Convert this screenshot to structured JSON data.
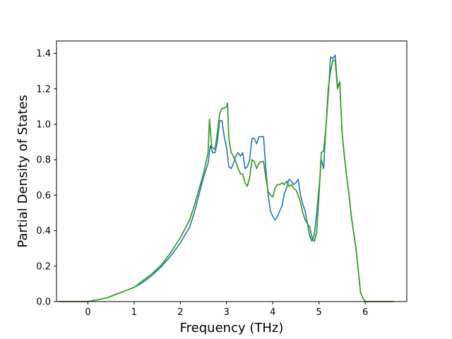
{
  "chart_data": {
    "type": "line",
    "title": "",
    "xlabel": "Frequency (THz)",
    "ylabel": "Partial Density of States",
    "xlim": [
      -0.68,
      6.9
    ],
    "ylim": [
      0.0,
      1.47
    ],
    "xticks": [
      0,
      1,
      2,
      3,
      4,
      5,
      6
    ],
    "yticks": [
      0.0,
      0.2,
      0.4,
      0.6,
      0.8,
      1.0,
      1.2,
      1.4
    ],
    "xtick_labels": [
      "0",
      "1",
      "2",
      "3",
      "4",
      "5",
      "6"
    ],
    "ytick_labels": [
      "0.0",
      "0.2",
      "0.4",
      "0.6",
      "0.8",
      "1.0",
      "1.2",
      "1.4"
    ],
    "grid": false,
    "legend": null,
    "series": [
      {
        "color": "#1f77b4",
        "x": [
          -0.62,
          0.0,
          0.2,
          0.4,
          0.6,
          0.8,
          1.0,
          1.2,
          1.4,
          1.6,
          1.8,
          2.0,
          2.2,
          2.3,
          2.4,
          2.5,
          2.6,
          2.65,
          2.7,
          2.75,
          2.8,
          2.85,
          2.9,
          2.95,
          3.0,
          3.05,
          3.1,
          3.15,
          3.2,
          3.25,
          3.3,
          3.35,
          3.4,
          3.45,
          3.5,
          3.55,
          3.6,
          3.65,
          3.7,
          3.75,
          3.8,
          3.85,
          3.9,
          3.95,
          4.0,
          4.05,
          4.1,
          4.15,
          4.2,
          4.25,
          4.3,
          4.35,
          4.4,
          4.45,
          4.5,
          4.55,
          4.6,
          4.65,
          4.7,
          4.75,
          4.8,
          4.85,
          4.9,
          4.95,
          5.0,
          5.05,
          5.1,
          5.15,
          5.2,
          5.25,
          5.3,
          5.35,
          5.4,
          5.45,
          5.5,
          5.55,
          5.6,
          5.65,
          5.7,
          5.8,
          5.9,
          5.95,
          6.0,
          6.1,
          6.2,
          6.3,
          6.6
        ],
        "y": [
          0.0,
          0.0,
          0.01,
          0.02,
          0.04,
          0.06,
          0.08,
          0.11,
          0.15,
          0.2,
          0.26,
          0.33,
          0.42,
          0.5,
          0.6,
          0.7,
          0.78,
          0.88,
          0.84,
          0.84,
          0.9,
          1.02,
          1.02,
          0.93,
          0.87,
          0.76,
          0.75,
          0.78,
          0.82,
          0.84,
          0.82,
          0.84,
          0.75,
          0.76,
          0.8,
          0.92,
          0.92,
          0.89,
          0.93,
          0.93,
          0.93,
          0.75,
          0.6,
          0.51,
          0.48,
          0.46,
          0.48,
          0.51,
          0.54,
          0.61,
          0.64,
          0.69,
          0.68,
          0.66,
          0.67,
          0.69,
          0.6,
          0.55,
          0.51,
          0.44,
          0.37,
          0.34,
          0.38,
          0.5,
          0.64,
          0.8,
          0.75,
          0.98,
          1.16,
          1.38,
          1.37,
          1.39,
          1.22,
          1.23,
          0.95,
          0.82,
          0.7,
          0.6,
          0.48,
          0.3,
          0.05,
          0.02,
          0.0,
          0.0,
          0.0,
          0.0,
          0.0
        ]
      },
      {
        "color": "#ff7f0e",
        "x": [
          -0.62,
          0.0,
          0.2,
          0.4,
          0.6,
          0.8,
          1.0,
          1.2,
          1.4,
          1.6,
          1.8,
          2.0,
          2.2,
          2.3,
          2.4,
          2.5,
          2.6,
          2.63,
          2.68,
          2.75,
          2.8,
          2.85,
          2.9,
          2.95,
          3.0,
          3.02,
          3.05,
          3.1,
          3.15,
          3.2,
          3.25,
          3.3,
          3.35,
          3.4,
          3.45,
          3.5,
          3.55,
          3.6,
          3.65,
          3.7,
          3.75,
          3.8,
          3.85,
          3.9,
          3.95,
          4.0,
          4.05,
          4.1,
          4.15,
          4.2,
          4.25,
          4.3,
          4.35,
          4.4,
          4.45,
          4.5,
          4.55,
          4.6,
          4.65,
          4.7,
          4.75,
          4.8,
          4.85,
          4.9,
          4.95,
          5.0,
          5.05,
          5.1,
          5.15,
          5.2,
          5.25,
          5.3,
          5.35,
          5.4,
          5.45,
          5.5,
          5.55,
          5.6,
          5.65,
          5.7,
          5.8,
          5.9,
          5.95,
          6.0,
          6.1,
          6.2,
          6.3,
          6.6
        ],
        "y": [
          0.0,
          0.0,
          0.01,
          0.02,
          0.04,
          0.06,
          0.08,
          0.12,
          0.16,
          0.21,
          0.28,
          0.36,
          0.46,
          0.54,
          0.63,
          0.72,
          0.84,
          1.03,
          0.87,
          0.86,
          0.95,
          1.06,
          1.09,
          1.09,
          1.1,
          1.12,
          0.92,
          0.84,
          0.82,
          0.79,
          0.75,
          0.72,
          0.72,
          0.67,
          0.65,
          0.7,
          0.8,
          0.79,
          0.75,
          0.78,
          0.79,
          0.79,
          0.7,
          0.62,
          0.6,
          0.59,
          0.64,
          0.66,
          0.66,
          0.67,
          0.66,
          0.68,
          0.65,
          0.66,
          0.64,
          0.63,
          0.6,
          0.56,
          0.5,
          0.46,
          0.44,
          0.42,
          0.36,
          0.34,
          0.39,
          0.6,
          0.84,
          0.85,
          0.98,
          1.2,
          1.3,
          1.36,
          1.36,
          1.2,
          1.24,
          0.95,
          0.82,
          0.7,
          0.6,
          0.48,
          0.3,
          0.05,
          0.02,
          0.0,
          0.0,
          0.0,
          0.0,
          0.0
        ]
      },
      {
        "color": "#2ca02c",
        "x": [
          -0.62,
          0.0,
          0.2,
          0.4,
          0.6,
          0.8,
          1.0,
          1.2,
          1.4,
          1.6,
          1.8,
          2.0,
          2.2,
          2.3,
          2.4,
          2.5,
          2.6,
          2.63,
          2.68,
          2.75,
          2.8,
          2.85,
          2.9,
          2.95,
          3.0,
          3.02,
          3.05,
          3.1,
          3.15,
          3.2,
          3.25,
          3.3,
          3.35,
          3.4,
          3.45,
          3.5,
          3.55,
          3.6,
          3.65,
          3.7,
          3.75,
          3.8,
          3.85,
          3.9,
          3.95,
          4.0,
          4.05,
          4.1,
          4.15,
          4.2,
          4.25,
          4.3,
          4.35,
          4.4,
          4.45,
          4.5,
          4.55,
          4.6,
          4.65,
          4.7,
          4.75,
          4.8,
          4.85,
          4.9,
          4.95,
          5.0,
          5.05,
          5.1,
          5.15,
          5.2,
          5.25,
          5.3,
          5.35,
          5.4,
          5.45,
          5.5,
          5.55,
          5.6,
          5.65,
          5.7,
          5.8,
          5.9,
          5.95,
          6.0,
          6.1,
          6.2,
          6.3,
          6.6
        ],
        "y": [
          0.0,
          0.0,
          0.01,
          0.02,
          0.04,
          0.06,
          0.08,
          0.12,
          0.16,
          0.21,
          0.28,
          0.36,
          0.46,
          0.54,
          0.63,
          0.72,
          0.84,
          1.03,
          0.87,
          0.86,
          0.95,
          1.06,
          1.09,
          1.09,
          1.1,
          1.12,
          0.92,
          0.84,
          0.82,
          0.79,
          0.75,
          0.72,
          0.72,
          0.67,
          0.65,
          0.7,
          0.8,
          0.79,
          0.75,
          0.78,
          0.79,
          0.79,
          0.7,
          0.62,
          0.6,
          0.59,
          0.64,
          0.66,
          0.66,
          0.67,
          0.66,
          0.68,
          0.65,
          0.66,
          0.64,
          0.63,
          0.6,
          0.56,
          0.5,
          0.46,
          0.44,
          0.42,
          0.36,
          0.34,
          0.39,
          0.6,
          0.84,
          0.85,
          0.98,
          1.2,
          1.3,
          1.36,
          1.36,
          1.2,
          1.24,
          0.95,
          0.82,
          0.7,
          0.6,
          0.48,
          0.3,
          0.05,
          0.02,
          0.0,
          0.0,
          0.0,
          0.0,
          0.0
        ]
      }
    ]
  }
}
